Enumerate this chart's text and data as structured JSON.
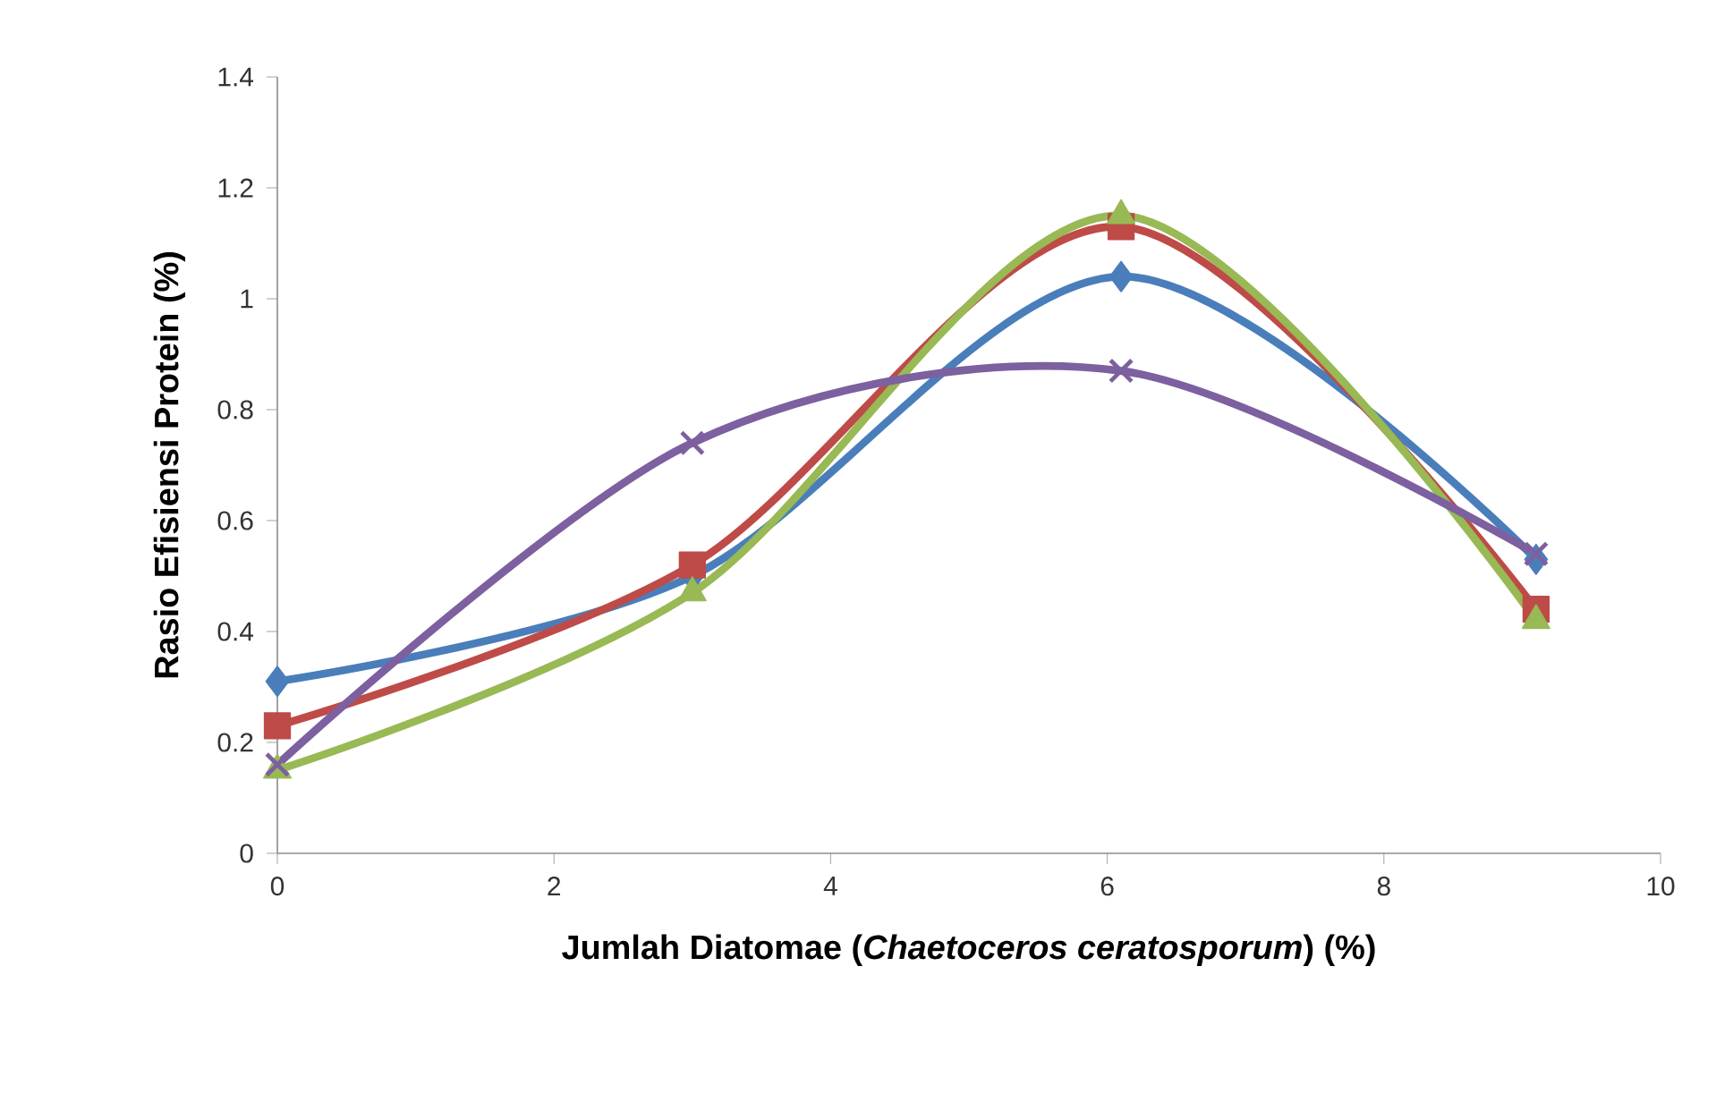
{
  "chart_data": {
    "type": "line",
    "xlabel": "Jumlah Diatomae (*Chaetoceros ceratosporum*) (%)",
    "ylabel": "Rasio Efisiensi Protein (%)",
    "xlim": [
      0,
      10
    ],
    "xticks": [
      0,
      2,
      4,
      6,
      8,
      10
    ],
    "ylim": [
      0,
      1.4
    ],
    "yticks": [
      0,
      0.2,
      0.4,
      0.6,
      0.8,
      1,
      1.2,
      1.4
    ],
    "series": [
      {
        "color": "#4a7ebb",
        "marker": "diamond",
        "x": [
          0,
          3,
          6.1,
          9.1
        ],
        "values": [
          0.31,
          0.5,
          1.04,
          0.53
        ]
      },
      {
        "color": "#be4b48",
        "marker": "square",
        "x": [
          0,
          3,
          6.1,
          9.1
        ],
        "values": [
          0.23,
          0.52,
          1.13,
          0.44
        ]
      },
      {
        "color": "#98b954",
        "marker": "triangle",
        "x": [
          0,
          3,
          6.1,
          9.1
        ],
        "values": [
          0.15,
          0.47,
          1.15,
          0.42
        ]
      },
      {
        "color": "#7d60a0",
        "marker": "cross",
        "x": [
          0,
          3,
          6.1,
          9.1
        ],
        "values": [
          0.16,
          0.74,
          0.87,
          0.54
        ]
      }
    ]
  }
}
